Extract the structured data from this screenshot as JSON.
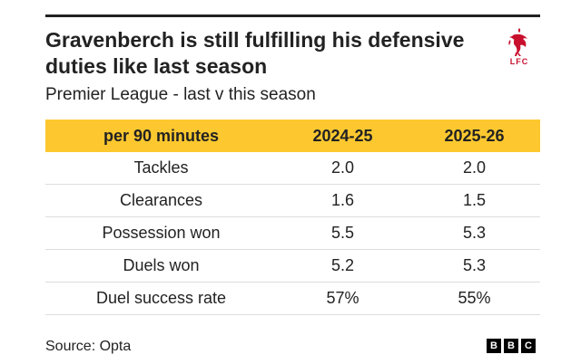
{
  "header": {
    "title": "Gravenberch is still fulfilling his defensive duties like last season",
    "subtitle": "Premier League - last v this season"
  },
  "logo": {
    "icon": "liver-bird-icon",
    "text": "LFC",
    "color": "#c8102e"
  },
  "table": {
    "header_color": "#fdc82f",
    "columns": [
      "per 90 minutes",
      "2024-25",
      "2025-26"
    ],
    "rows": [
      [
        "Tackles",
        "2.0",
        "2.0"
      ],
      [
        "Clearances",
        "1.6",
        "1.5"
      ],
      [
        "Possession won",
        "5.5",
        "5.3"
      ],
      [
        "Duels won",
        "5.2",
        "5.3"
      ],
      [
        "Duel success rate",
        "57%",
        "55%"
      ]
    ]
  },
  "footer": {
    "source": "Source: Opta",
    "brand_letters": [
      "B",
      "B",
      "C"
    ]
  }
}
